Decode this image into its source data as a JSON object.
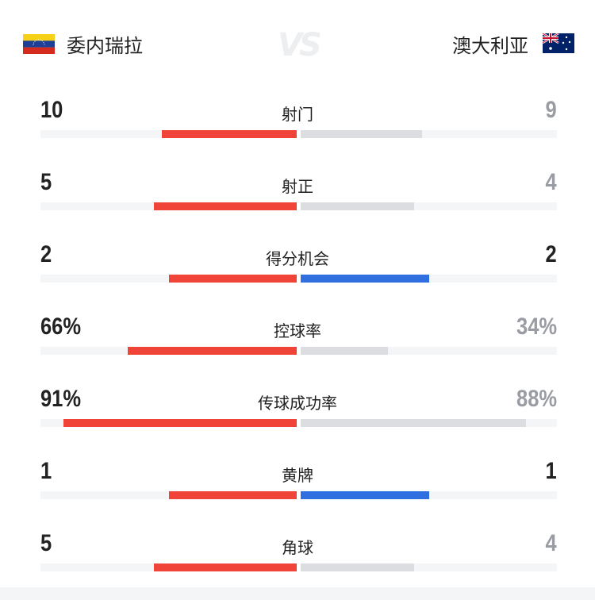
{
  "header": {
    "home": "委内瑞拉",
    "away": "澳大利亚",
    "vs": "VS",
    "home_flag": "venezuela-flag",
    "away_flag": "australia-flag"
  },
  "colors": {
    "home_bar": "#f04438",
    "away_bar_lower": "#dcdde1",
    "away_bar_equal": "#2f6fe0",
    "number_leading": "#222222",
    "number_trailing": "#9a9ca3"
  },
  "stats": [
    {
      "label": "射门",
      "home": "10",
      "away": "9",
      "home_share": 0.526,
      "away_share": 0.474,
      "tied": false
    },
    {
      "label": "射正",
      "home": "5",
      "away": "4",
      "home_share": 0.556,
      "away_share": 0.444,
      "tied": false
    },
    {
      "label": "得分机会",
      "home": "2",
      "away": "2",
      "home_share": 0.5,
      "away_share": 0.5,
      "tied": true
    },
    {
      "label": "控球率",
      "home": "66%",
      "away": "34%",
      "home_share": 0.66,
      "away_share": 0.34,
      "tied": false
    },
    {
      "label": "传球成功率",
      "home": "91%",
      "away": "88%",
      "home_share": 0.91,
      "away_share": 0.88,
      "tied": false
    },
    {
      "label": "黄牌",
      "home": "1",
      "away": "1",
      "home_share": 0.5,
      "away_share": 0.5,
      "tied": true
    },
    {
      "label": "角球",
      "home": "5",
      "away": "4",
      "home_share": 0.556,
      "away_share": 0.444,
      "tied": false
    }
  ]
}
